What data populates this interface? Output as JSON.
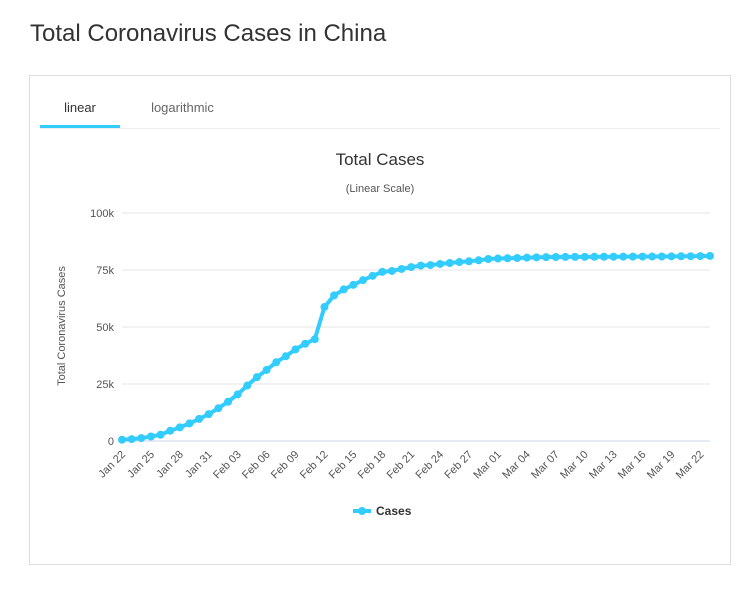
{
  "page": {
    "title": "Total Coronavirus Cases in China"
  },
  "tabs": [
    {
      "label": "linear",
      "active": true
    },
    {
      "label": "logarithmic",
      "active": false
    }
  ],
  "colors": {
    "series": "#33ccff",
    "tab_active": "#33ccff"
  },
  "chart_data": {
    "type": "line",
    "title": "Total Cases",
    "subtitle": "(Linear Scale)",
    "ylabel": "Total Coronavirus Cases",
    "xlabel": "",
    "ylim": [
      0,
      100000
    ],
    "yticks": [
      {
        "value": 0,
        "label": "0"
      },
      {
        "value": 25000,
        "label": "25k"
      },
      {
        "value": 50000,
        "label": "50k"
      },
      {
        "value": 75000,
        "label": "75k"
      },
      {
        "value": 100000,
        "label": "100k"
      }
    ],
    "x_tick_labels": [
      "Jan 22",
      "Jan 25",
      "Jan 28",
      "Jan 31",
      "Feb 03",
      "Feb 06",
      "Feb 09",
      "Feb 12",
      "Feb 15",
      "Feb 18",
      "Feb 21",
      "Feb 24",
      "Feb 27",
      "Mar 01",
      "Mar 04",
      "Mar 07",
      "Mar 10",
      "Mar 13",
      "Mar 16",
      "Mar 19",
      "Mar 22"
    ],
    "legend_position": "bottom-center",
    "grid": true,
    "series": [
      {
        "name": "Cases",
        "x": [
          "Jan 22",
          "Jan 23",
          "Jan 24",
          "Jan 25",
          "Jan 26",
          "Jan 27",
          "Jan 28",
          "Jan 29",
          "Jan 30",
          "Jan 31",
          "Feb 01",
          "Feb 02",
          "Feb 03",
          "Feb 04",
          "Feb 05",
          "Feb 06",
          "Feb 07",
          "Feb 08",
          "Feb 09",
          "Feb 10",
          "Feb 11",
          "Feb 12",
          "Feb 13",
          "Feb 14",
          "Feb 15",
          "Feb 16",
          "Feb 17",
          "Feb 18",
          "Feb 19",
          "Feb 20",
          "Feb 21",
          "Feb 22",
          "Feb 23",
          "Feb 24",
          "Feb 25",
          "Feb 26",
          "Feb 27",
          "Feb 28",
          "Feb 29",
          "Mar 01",
          "Mar 02",
          "Mar 03",
          "Mar 04",
          "Mar 05",
          "Mar 06",
          "Mar 07",
          "Mar 08",
          "Mar 09",
          "Mar 10",
          "Mar 11",
          "Mar 12",
          "Mar 13",
          "Mar 14",
          "Mar 15",
          "Mar 16",
          "Mar 17",
          "Mar 18",
          "Mar 19",
          "Mar 20",
          "Mar 21",
          "Mar 22",
          "Mar 23"
        ],
        "values": [
          571,
          830,
          1287,
          1975,
          2744,
          4515,
          5974,
          7711,
          9692,
          11791,
          14380,
          17205,
          20438,
          24324,
          28018,
          31161,
          34546,
          37198,
          40171,
          42638,
          44653,
          58761,
          63851,
          66492,
          68500,
          70548,
          72436,
          74185,
          74576,
          75465,
          76288,
          76936,
          77150,
          77658,
          78064,
          78497,
          78824,
          79251,
          79824,
          80026,
          80151,
          80270,
          80409,
          80552,
          80651,
          80695,
          80735,
          80754,
          80778,
          80793,
          80813,
          80824,
          80844,
          80860,
          80881,
          80894,
          80928,
          80967,
          81008,
          81054,
          81093,
          81171
        ]
      }
    ]
  }
}
